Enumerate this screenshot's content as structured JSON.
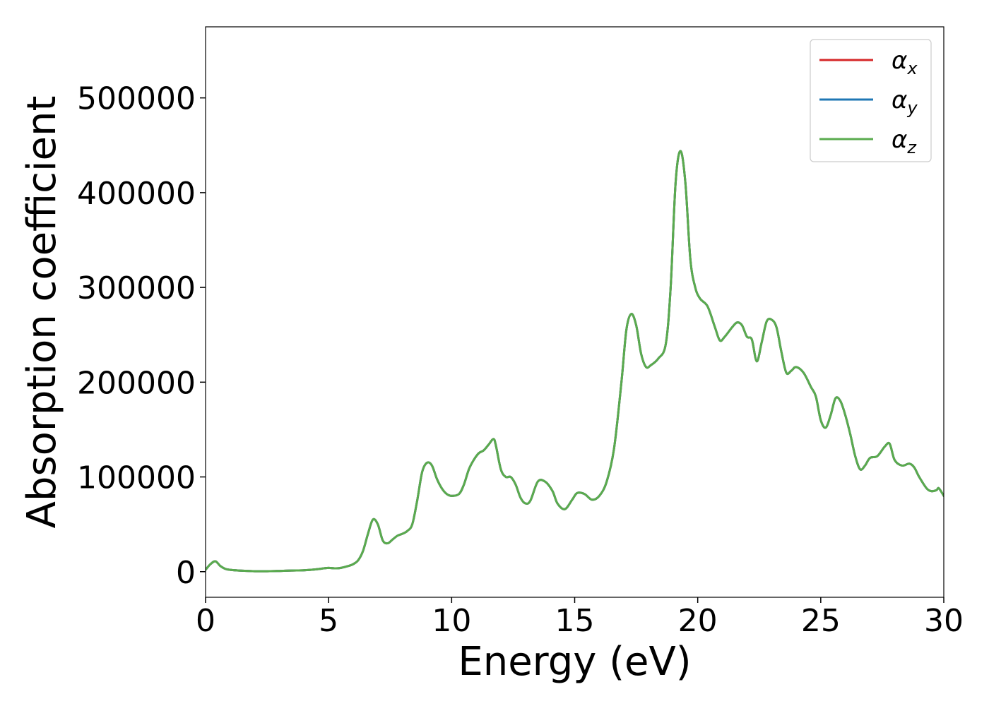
{
  "chart_data": {
    "type": "line",
    "title": "",
    "xlabel": "Energy (eV)",
    "ylabel": "Absorption coefficient",
    "xlim": [
      0,
      30
    ],
    "ylim": [
      -27000,
      575000
    ],
    "xticks": [
      0,
      5,
      10,
      15,
      20,
      25,
      30
    ],
    "xtick_labels": [
      "0",
      "5",
      "10",
      "15",
      "20",
      "25",
      "30"
    ],
    "yticks": [
      0,
      100000,
      200000,
      300000,
      400000,
      500000
    ],
    "ytick_labels": [
      "0",
      "100000",
      "200000",
      "300000",
      "400000",
      "500000"
    ],
    "grid": false,
    "legend_position": "top-right",
    "x": [
      0,
      0.2,
      0.4,
      0.6,
      0.8,
      1.0,
      1.5,
      2.0,
      2.5,
      3.0,
      3.5,
      4.0,
      4.5,
      4.8,
      5.0,
      5.3,
      5.5,
      5.8,
      6.0,
      6.2,
      6.4,
      6.6,
      6.8,
      7.0,
      7.2,
      7.4,
      7.6,
      7.8,
      8.0,
      8.2,
      8.4,
      8.6,
      8.8,
      9.0,
      9.2,
      9.4,
      9.6,
      9.8,
      10.0,
      10.3,
      10.5,
      10.7,
      10.9,
      11.1,
      11.3,
      11.5,
      11.7,
      11.8,
      12.0,
      12.2,
      12.4,
      12.6,
      12.8,
      13.0,
      13.2,
      13.5,
      13.8,
      14.1,
      14.3,
      14.6,
      14.9,
      15.1,
      15.4,
      15.7,
      16.0,
      16.3,
      16.6,
      16.9,
      17.1,
      17.3,
      17.5,
      17.7,
      17.9,
      18.1,
      18.4,
      18.7,
      18.9,
      19.1,
      19.3,
      19.5,
      19.7,
      19.9,
      20.1,
      20.4,
      20.7,
      20.9,
      21.1,
      21.4,
      21.6,
      21.8,
      22.0,
      22.2,
      22.4,
      22.6,
      22.8,
      23.0,
      23.2,
      23.4,
      23.6,
      23.8,
      24.0,
      24.3,
      24.6,
      24.8,
      25.0,
      25.2,
      25.4,
      25.6,
      25.8,
      26.0,
      26.2,
      26.4,
      26.6,
      26.8,
      27.0,
      27.3,
      27.6,
      27.8,
      28.0,
      28.3,
      28.6,
      28.8,
      29.0,
      29.3,
      29.5,
      29.7,
      29.8,
      30.0
    ],
    "series": [
      {
        "name": "αx",
        "name_base": "α",
        "name_sub": "x",
        "color": "#d62728",
        "values": [
          2000,
          8000,
          11000,
          6000,
          3000,
          2000,
          1000,
          500,
          500,
          800,
          1200,
          1500,
          2500,
          3500,
          4000,
          3500,
          4000,
          6000,
          8000,
          12000,
          22000,
          40000,
          55000,
          50000,
          33000,
          30000,
          34000,
          38000,
          40000,
          43000,
          50000,
          75000,
          105000,
          115000,
          112000,
          98000,
          88000,
          82000,
          80000,
          82000,
          92000,
          108000,
          118000,
          125000,
          128000,
          134000,
          140000,
          133000,
          108000,
          100000,
          100000,
          92000,
          78000,
          72000,
          75000,
          95000,
          95000,
          85000,
          72000,
          66000,
          76000,
          83000,
          82000,
          76000,
          80000,
          95000,
          130000,
          200000,
          255000,
          272000,
          260000,
          230000,
          216000,
          218000,
          225000,
          240000,
          300000,
          410000,
          444000,
          410000,
          330000,
          300000,
          288000,
          280000,
          258000,
          244000,
          248000,
          258000,
          263000,
          260000,
          248000,
          245000,
          222000,
          242000,
          264000,
          266000,
          258000,
          232000,
          210000,
          212000,
          216000,
          210000,
          195000,
          185000,
          160000,
          152000,
          165000,
          183000,
          180000,
          165000,
          145000,
          122000,
          108000,
          112000,
          120000,
          122000,
          132000,
          135000,
          118000,
          112000,
          114000,
          110000,
          100000,
          88000,
          85000,
          86000,
          88000,
          80000
        ]
      },
      {
        "name": "αy",
        "name_base": "α",
        "name_sub": "y",
        "color": "#1f77b4",
        "values": [
          2000,
          8000,
          11000,
          6000,
          3000,
          2000,
          1000,
          500,
          500,
          800,
          1200,
          1500,
          2500,
          3500,
          4000,
          3500,
          4000,
          6000,
          8000,
          12000,
          22000,
          40000,
          55000,
          50000,
          33000,
          30000,
          34000,
          38000,
          40000,
          43000,
          50000,
          75000,
          105000,
          115000,
          112000,
          98000,
          88000,
          82000,
          80000,
          82000,
          92000,
          108000,
          118000,
          125000,
          128000,
          134000,
          140000,
          133000,
          108000,
          100000,
          100000,
          92000,
          78000,
          72000,
          75000,
          95000,
          95000,
          85000,
          72000,
          66000,
          76000,
          83000,
          82000,
          76000,
          80000,
          95000,
          130000,
          200000,
          255000,
          272000,
          260000,
          230000,
          216000,
          218000,
          225000,
          240000,
          300000,
          410000,
          444000,
          410000,
          330000,
          300000,
          288000,
          280000,
          258000,
          244000,
          248000,
          258000,
          263000,
          260000,
          248000,
          245000,
          222000,
          242000,
          264000,
          266000,
          258000,
          232000,
          210000,
          212000,
          216000,
          210000,
          195000,
          185000,
          160000,
          152000,
          165000,
          183000,
          180000,
          165000,
          145000,
          122000,
          108000,
          112000,
          120000,
          122000,
          132000,
          135000,
          118000,
          112000,
          114000,
          110000,
          100000,
          88000,
          85000,
          86000,
          88000,
          80000
        ]
      },
      {
        "name": "αz",
        "name_base": "α",
        "name_sub": "z",
        "color": "#5aab4e",
        "values": [
          2000,
          8000,
          11000,
          6000,
          3000,
          2000,
          1000,
          500,
          500,
          800,
          1200,
          1500,
          2500,
          3500,
          4000,
          3500,
          4000,
          6000,
          8000,
          12000,
          22000,
          40000,
          55000,
          50000,
          33000,
          30000,
          34000,
          38000,
          40000,
          43000,
          50000,
          75000,
          105000,
          115000,
          112000,
          98000,
          88000,
          82000,
          80000,
          82000,
          92000,
          108000,
          118000,
          125000,
          128000,
          134000,
          140000,
          133000,
          108000,
          100000,
          100000,
          92000,
          78000,
          72000,
          75000,
          95000,
          95000,
          85000,
          72000,
          66000,
          76000,
          83000,
          82000,
          76000,
          80000,
          95000,
          130000,
          200000,
          255000,
          272000,
          260000,
          230000,
          216000,
          218000,
          225000,
          240000,
          300000,
          410000,
          444000,
          410000,
          330000,
          300000,
          288000,
          280000,
          258000,
          244000,
          248000,
          258000,
          263000,
          260000,
          248000,
          245000,
          222000,
          242000,
          264000,
          266000,
          258000,
          232000,
          210000,
          212000,
          216000,
          210000,
          195000,
          185000,
          160000,
          152000,
          165000,
          183000,
          180000,
          165000,
          145000,
          122000,
          108000,
          112000,
          120000,
          122000,
          132000,
          135000,
          118000,
          112000,
          114000,
          110000,
          100000,
          88000,
          85000,
          86000,
          88000,
          80000
        ]
      }
    ]
  }
}
